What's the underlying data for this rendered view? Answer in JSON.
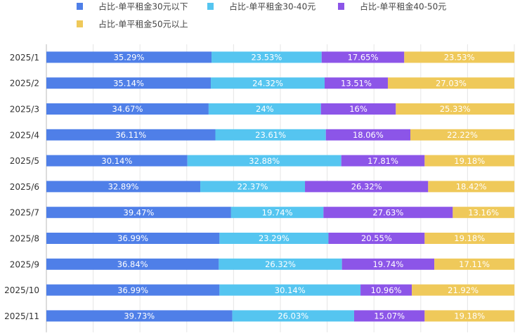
{
  "chart_data": {
    "type": "bar",
    "orientation": "horizontal",
    "stacked": true,
    "xlim": [
      0,
      100
    ],
    "grid": true,
    "legend_position": "top",
    "categories": [
      "2025/1",
      "2025/2",
      "2025/3",
      "2025/4",
      "2025/5",
      "2025/6",
      "2025/7",
      "2025/8",
      "2025/9",
      "2025/10",
      "2025/11"
    ],
    "series": [
      {
        "name": "占比-单平租金30元以下",
        "color": "#4f7fe8",
        "values": [
          35.29,
          35.14,
          34.67,
          36.11,
          30.14,
          32.89,
          39.47,
          36.99,
          36.84,
          36.99,
          39.73
        ],
        "labels": [
          "35.29%",
          "35.14%",
          "34.67%",
          "36.11%",
          "30.14%",
          "32.89%",
          "39.47%",
          "36.99%",
          "36.84%",
          "36.99%",
          "39.73%"
        ]
      },
      {
        "name": "占比-单平租金30-40元",
        "color": "#55c5f0",
        "values": [
          23.53,
          24.32,
          24,
          23.61,
          32.88,
          22.37,
          19.74,
          23.29,
          26.32,
          30.14,
          26.03
        ],
        "labels": [
          "23.53%",
          "24.32%",
          "24%",
          "23.61%",
          "32.88%",
          "22.37%",
          "19.74%",
          "23.29%",
          "26.32%",
          "30.14%",
          "26.03%"
        ]
      },
      {
        "name": "占比-单平租金40-50元",
        "color": "#8c55e8",
        "values": [
          17.65,
          13.51,
          16,
          18.06,
          17.81,
          26.32,
          27.63,
          20.55,
          19.74,
          10.96,
          15.07
        ],
        "labels": [
          "17.65%",
          "13.51%",
          "16%",
          "18.06%",
          "17.81%",
          "26.32%",
          "27.63%",
          "20.55%",
          "19.74%",
          "10.96%",
          "15.07%"
        ]
      },
      {
        "name": "占比-单平租金50元以上",
        "color": "#efc95a",
        "values": [
          23.53,
          27.03,
          25.33,
          22.22,
          19.18,
          18.42,
          13.16,
          19.18,
          17.11,
          21.92,
          19.18
        ],
        "labels": [
          "23.53%",
          "27.03%",
          "25.33%",
          "22.22%",
          "19.18%",
          "18.42%",
          "13.16%",
          "19.18%",
          "17.11%",
          "21.92%",
          "19.18%"
        ]
      }
    ]
  }
}
